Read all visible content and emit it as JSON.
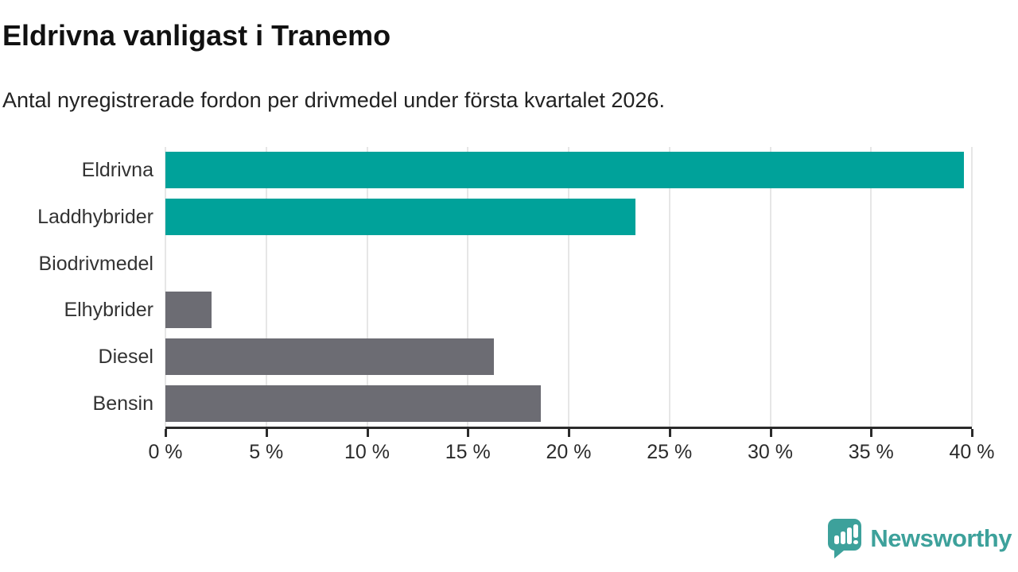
{
  "header": {
    "title": "Eldrivna vanligast i Tranemo",
    "subtitle": "Antal nyregistrerade fordon per drivmedel under första kvartalet 2026."
  },
  "chart_data": {
    "type": "bar",
    "orientation": "horizontal",
    "categories": [
      "Eldrivna",
      "Laddhybrider",
      "Biodrivmedel",
      "Elhybrider",
      "Diesel",
      "Bensin"
    ],
    "values": [
      39.6,
      23.3,
      0,
      2.3,
      16.3,
      18.6
    ],
    "bar_colors": [
      "#00a29a",
      "#00a29a",
      "#00a29a",
      "#6c6c73",
      "#6c6c73",
      "#6c6c73"
    ],
    "title": "Eldrivna vanligast i Tranemo",
    "subtitle": "Antal nyregistrerade fordon per drivmedel under första kvartalet 2026.",
    "xlabel": "",
    "ylabel": "",
    "xlim": [
      0,
      40
    ],
    "x_ticks": [
      0,
      5,
      10,
      15,
      20,
      25,
      30,
      35,
      40
    ],
    "x_tick_labels": [
      "0 %",
      "5 %",
      "10 %",
      "15 %",
      "20 %",
      "25 %",
      "30 %",
      "35 %",
      "40 %"
    ],
    "grid": "vertical",
    "legend": "none"
  },
  "colors": {
    "accent_teal": "#00a29a",
    "neutral_gray": "#6c6c73",
    "gridline": "#e6e6e6",
    "axis": "#2b2b2b",
    "text": "#333333",
    "brand": "#3da19b"
  },
  "footer": {
    "brand": "Newsworthy"
  }
}
